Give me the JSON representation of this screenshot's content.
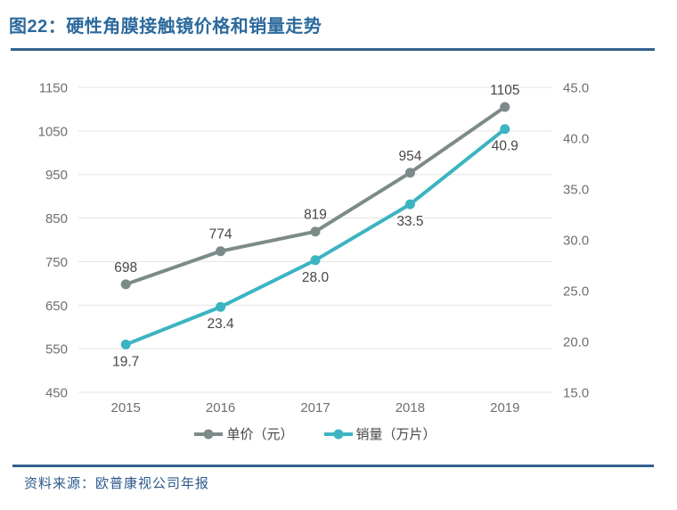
{
  "header": {
    "title": "图22：硬性角膜接触镜价格和销量走势"
  },
  "footer": {
    "source": "资料来源：欧普康视公司年报"
  },
  "colors": {
    "title_blue": "#2c6a9c",
    "rule_navy": "#33608c",
    "price_line_gray": "#7c8b89",
    "volume_line_teal": "#3cb4c1",
    "gridline_gray": "#e3e3e3",
    "source_blue": "#2d5a8b"
  },
  "chart_data": {
    "type": "line",
    "title": "硬性角膜接触镜价格和销量走势",
    "categories": [
      "2015",
      "2016",
      "2017",
      "2018",
      "2019"
    ],
    "series": [
      {
        "name": "单价（元）",
        "axis": "left",
        "color": "#7c8b89",
        "values": [
          698,
          774,
          819,
          954,
          1105
        ],
        "labels": [
          "698",
          "774",
          "819",
          "954",
          "1105"
        ],
        "label_position": "above"
      },
      {
        "name": "销量（万片）",
        "axis": "right",
        "color": "#3cb4c1",
        "values": [
          19.7,
          23.4,
          28.0,
          33.5,
          40.9
        ],
        "labels": [
          "19.7",
          "23.4",
          "28.0",
          "33.5",
          "40.9"
        ],
        "label_position": "below"
      }
    ],
    "left_axis": {
      "min": 450,
      "max": 1150,
      "step": 100,
      "ticks": [
        "1150",
        "1050",
        "950",
        "850",
        "750",
        "650",
        "550",
        "450"
      ]
    },
    "right_axis": {
      "min": 15,
      "max": 45,
      "step": 5,
      "ticks": [
        "45.0",
        "40.0",
        "35.0",
        "30.0",
        "25.0",
        "20.0",
        "15.0"
      ]
    },
    "grid": "horizontal-only",
    "legend_position": "bottom"
  }
}
